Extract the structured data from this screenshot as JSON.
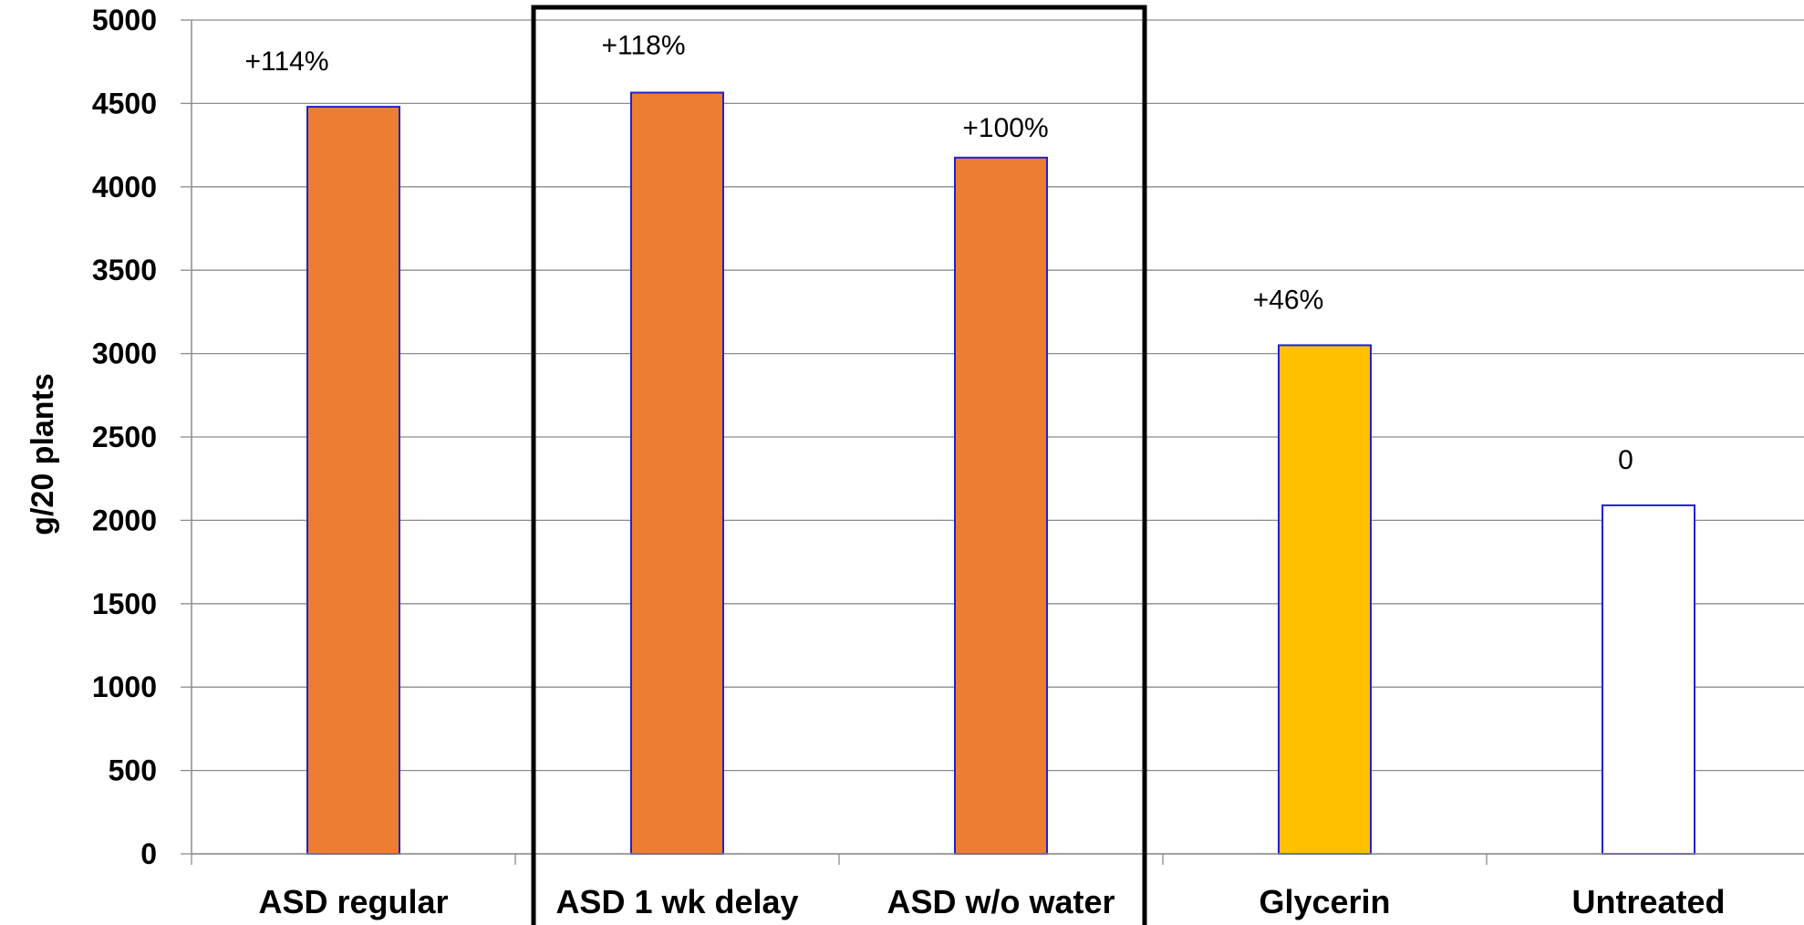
{
  "chart_data": {
    "type": "bar",
    "title": "",
    "xlabel": "",
    "ylabel": "g/20 plants",
    "ylim": [
      0,
      5000
    ],
    "yticks": [
      0,
      500,
      1000,
      1500,
      2000,
      2500,
      3000,
      3500,
      4000,
      4500,
      5000
    ],
    "grid": true,
    "legend": "none",
    "categories": [
      "ASD regular",
      "ASD 1 wk delay",
      "ASD w/o water",
      "Glycerin",
      "Untreated"
    ],
    "values": [
      4480,
      4565,
      4175,
      3050,
      2090
    ],
    "data_labels": [
      "+114%",
      "+118%",
      "+100%",
      "+46%",
      "0"
    ],
    "bar_colors": [
      "#ED7D31",
      "#ED7D31",
      "#ED7D31",
      "#FFC000",
      "#FFFFFF"
    ],
    "bar_edge_color": "#2222CC",
    "highlight_box": {
      "categories": [
        "ASD 1 wk delay",
        "ASD w/o water"
      ],
      "color": "#000000"
    }
  }
}
